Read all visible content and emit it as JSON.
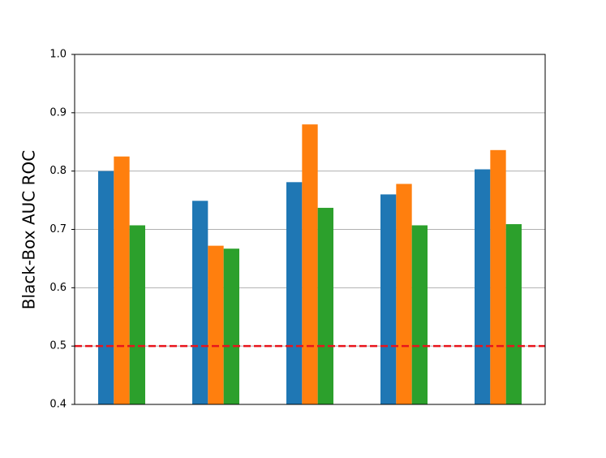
{
  "chart_data": {
    "type": "bar",
    "ylabel": "Black-Box AUC ROC",
    "categories": [
      null,
      null,
      null,
      null,
      null
    ],
    "series": [
      {
        "color": "#1f77b4",
        "values": [
          0.8,
          0.749,
          0.781,
          0.76,
          0.803
        ]
      },
      {
        "color": "#ff7f0e",
        "values": [
          0.825,
          0.672,
          0.88,
          0.778,
          0.836
        ]
      },
      {
        "color": "#2ca02c",
        "values": [
          0.707,
          0.667,
          0.737,
          0.707,
          0.709
        ]
      }
    ],
    "ylim": [
      0.4,
      1.0
    ],
    "yticks": [
      0.4,
      0.5,
      0.6,
      0.7,
      0.8,
      0.9,
      {
        "value": 1.0,
        "label": "1.0"
      }
    ],
    "grid": true,
    "reference_line": {
      "value": 0.5,
      "color": "#e8141c"
    }
  }
}
